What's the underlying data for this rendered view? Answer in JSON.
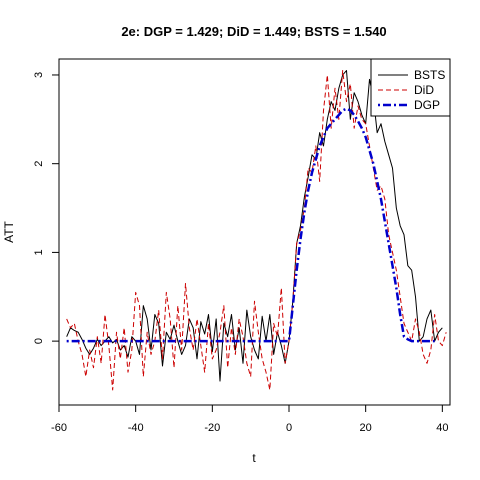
{
  "chart_data": {
    "type": "line",
    "title": "2e: DGP = 1.429; DiD = 1.449;  BSTS = 1.540",
    "xlabel": "t",
    "ylabel": "ATT",
    "xlim": [
      -60,
      42
    ],
    "ylim": [
      -0.72,
      3.18
    ],
    "xticks": [
      -60,
      -40,
      -20,
      0,
      20,
      40
    ],
    "yticks": [
      0,
      1,
      2,
      3
    ],
    "legend_position": "top-right",
    "x_start": -58,
    "series": [
      {
        "name": "BSTS",
        "color": "#000000",
        "dash": "solid",
        "values": [
          0.05,
          0.15,
          0.12,
          0.1,
          0.02,
          -0.08,
          -0.15,
          -0.08,
          0.02,
          -0.05,
          0.0,
          0.05,
          -0.02,
          0.02,
          -0.1,
          -0.05,
          -0.18,
          0.05,
          0.0,
          -0.15,
          0.4,
          0.25,
          -0.1,
          0.3,
          0.2,
          -0.28,
          0.1,
          0.02,
          0.18,
          0.0,
          -0.15,
          -0.05,
          0.25,
          0.15,
          -0.2,
          0.22,
          0.08,
          0.3,
          -0.12,
          0.25,
          -0.45,
          0.2,
          0.05,
          0.3,
          -0.1,
          0.15,
          -0.25,
          0.35,
          0.05,
          -0.1,
          -0.2,
          0.28,
          0.0,
          0.3,
          -0.15,
          0.1,
          -0.05,
          -0.25,
          0.0,
          0.45,
          1.1,
          1.3,
          1.62,
          1.85,
          2.1,
          2.05,
          2.35,
          2.2,
          2.5,
          2.7,
          2.6,
          2.85,
          3.0,
          3.05,
          2.5,
          2.8,
          2.7,
          2.55,
          2.45,
          2.95,
          2.75,
          2.35,
          2.45,
          2.25,
          2.1,
          1.95,
          1.5,
          1.3,
          1.2,
          0.85,
          0.8,
          0.5,
          0.0,
          0.05,
          0.25,
          0.35,
          0.0,
          0.1,
          0.15
        ]
      },
      {
        "name": "DiD",
        "color": "#cc0000",
        "dash": "dashed",
        "values": [
          0.25,
          0.15,
          0.2,
          0.0,
          -0.15,
          -0.4,
          -0.1,
          -0.3,
          0.05,
          -0.25,
          0.3,
          -0.05,
          -0.55,
          0.1,
          -0.2,
          0.15,
          -0.35,
          -0.1,
          0.55,
          0.4,
          -0.4,
          0.1,
          -0.15,
          0.0,
          0.35,
          -0.2,
          0.55,
          0.25,
          -0.3,
          0.4,
          -0.1,
          0.65,
          0.15,
          -0.1,
          0.25,
          -0.05,
          -0.35,
          0.2,
          -0.2,
          -0.1,
          0.1,
          0.4,
          -0.3,
          0.15,
          -0.15,
          0.25,
          0.05,
          -0.25,
          -0.4,
          0.45,
          0.1,
          -0.2,
          -0.35,
          -0.55,
          0.2,
          0.05,
          0.6,
          -0.25,
          0.0,
          0.45,
          1.1,
          1.25,
          1.5,
          1.95,
          1.9,
          2.2,
          1.8,
          2.6,
          3.0,
          2.4,
          2.85,
          2.5,
          3.05,
          2.7,
          2.9,
          2.4,
          2.65,
          2.5,
          2.45,
          2.2,
          1.95,
          1.7,
          1.75,
          1.6,
          1.2,
          1.0,
          0.8,
          0.5,
          0.2,
          0.1,
          0.0,
          0.25,
          0.1,
          -0.15,
          -0.25,
          -0.1,
          0.3,
          0.0,
          -0.05,
          0.1
        ]
      },
      {
        "name": "DGP",
        "color": "#0000cc",
        "dash": "dotdash",
        "values": [
          0,
          0,
          0,
          0,
          0,
          0,
          0,
          0,
          0,
          0,
          0,
          0,
          0,
          0,
          0,
          0,
          0,
          0,
          0,
          0,
          0,
          0,
          0,
          0,
          0,
          0,
          0,
          0,
          0,
          0,
          0,
          0,
          0,
          0,
          0,
          0,
          0,
          0,
          0,
          0,
          0,
          0,
          0,
          0,
          0,
          0,
          0,
          0,
          0,
          0,
          0,
          0,
          0,
          0,
          0,
          0,
          0,
          0,
          0,
          0.4,
          0.8,
          1.15,
          1.45,
          1.7,
          1.9,
          2.05,
          2.2,
          2.3,
          2.4,
          2.45,
          2.5,
          2.55,
          2.6,
          2.62,
          2.6,
          2.55,
          2.48,
          2.4,
          2.3,
          2.15,
          2.0,
          1.8,
          1.6,
          1.35,
          1.1,
          0.85,
          0.6,
          0.3,
          0.05,
          0.02,
          0,
          0,
          0,
          0,
          0,
          0,
          0
        ]
      }
    ]
  }
}
